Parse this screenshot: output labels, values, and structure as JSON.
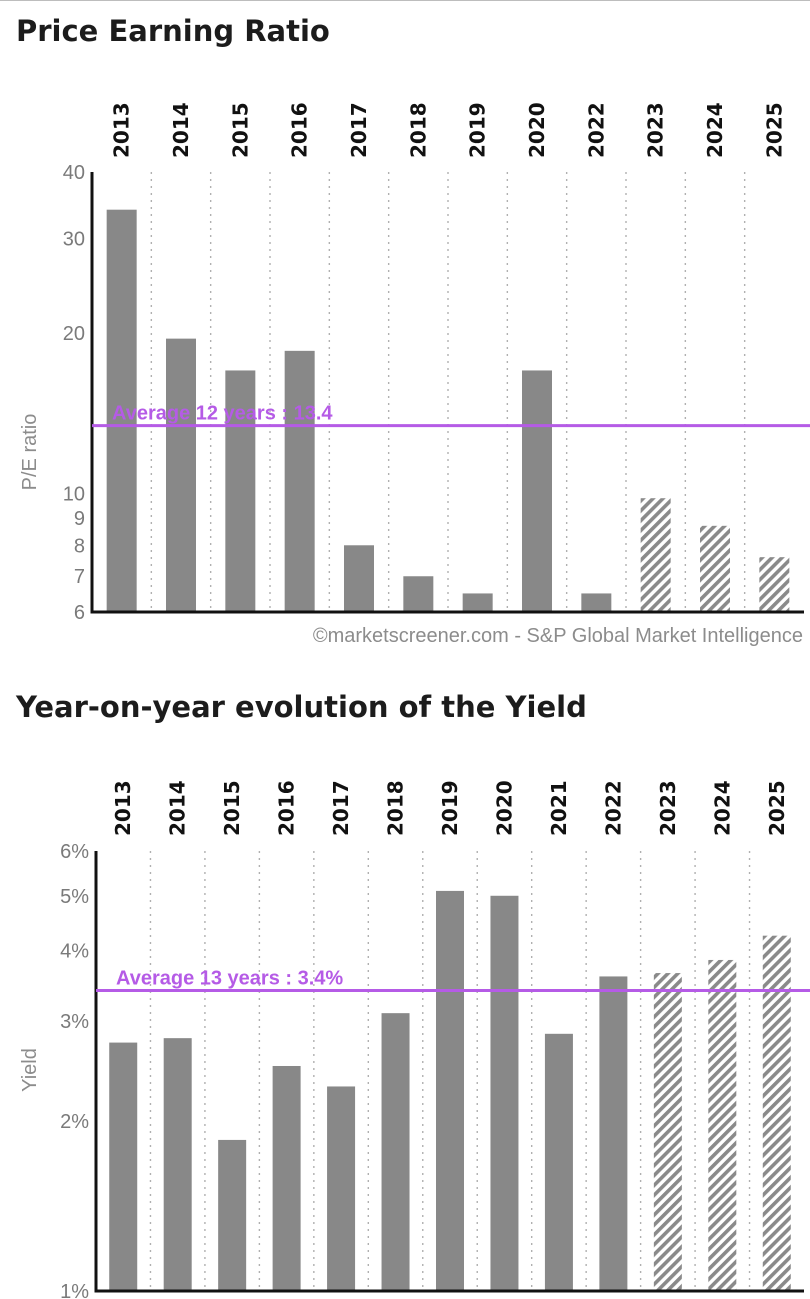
{
  "sections": {
    "pe_title": "Price Earning Ratio",
    "yield_title": "Year-on-year evolution of the Yield"
  },
  "colors": {
    "bar": "#888888",
    "forecast_hatch": "#8a8a8a",
    "average_line": "#b55be6",
    "grid": "#b0b0b0",
    "axis": "#111111"
  },
  "chart_data": [
    {
      "type": "bar",
      "title": "Price Earning Ratio",
      "ylabel": "P/E ratio",
      "yscale": "log",
      "ylim": [
        6,
        40
      ],
      "yticks": [
        6,
        7,
        8,
        9,
        10,
        20,
        30,
        40
      ],
      "ytick_labels": [
        "6",
        "7",
        "8",
        "9",
        "10",
        "20",
        "30",
        "40"
      ],
      "categories": [
        "2013",
        "2014",
        "2015",
        "2016",
        "2017",
        "2018",
        "2019",
        "2020",
        "2022",
        "2023",
        "2024",
        "2025"
      ],
      "values": [
        34,
        19.5,
        17,
        18.5,
        8,
        7,
        6.5,
        17,
        6.5,
        9.8,
        8.7,
        7.6
      ],
      "forecast": [
        false,
        false,
        false,
        false,
        false,
        false,
        false,
        false,
        false,
        true,
        true,
        true
      ],
      "average": {
        "value": 13.4,
        "label": "Average 12 years : 13.4"
      },
      "grid": "vertical-dotted",
      "credit": "©marketscreener.com - S&P Global Market Intelligence"
    },
    {
      "type": "bar",
      "title": "Year-on-year evolution of the Yield",
      "ylabel": "Yield",
      "yscale": "log",
      "ylim": [
        1,
        6
      ],
      "yticks": [
        1,
        2,
        3,
        4,
        5,
        6
      ],
      "ytick_labels": [
        "1%",
        "2%",
        "3%",
        "4%",
        "5%",
        "6%"
      ],
      "categories": [
        "2013",
        "2014",
        "2015",
        "2016",
        "2017",
        "2018",
        "2019",
        "2020",
        "2021",
        "2022",
        "2023",
        "2024",
        "2025"
      ],
      "values": [
        2.75,
        2.8,
        1.85,
        2.5,
        2.3,
        3.1,
        5.1,
        5.0,
        2.85,
        3.6,
        3.65,
        3.85,
        4.25
      ],
      "forecast": [
        false,
        false,
        false,
        false,
        false,
        false,
        false,
        false,
        false,
        false,
        true,
        true,
        true
      ],
      "average": {
        "value": 3.4,
        "label": "Average 13 years : 3.4%"
      },
      "grid": "vertical-dotted"
    }
  ]
}
